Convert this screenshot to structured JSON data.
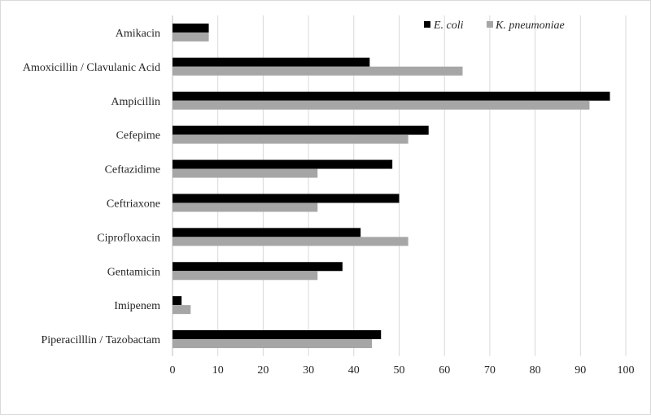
{
  "chart_data": {
    "type": "bar",
    "orientation": "horizontal",
    "categories": [
      "Amikacin",
      "Amoxicillin / Clavulanic Acid",
      "Ampicillin",
      "Cefepime",
      "Ceftazidime",
      "Ceftriaxone",
      "Ciprofloxacin",
      "Gentamicin",
      "Imipenem",
      "Piperacilllin / Tazobactam"
    ],
    "series": [
      {
        "name": "E. coli",
        "color": "#000000",
        "values": [
          8,
          43.5,
          96.5,
          56.5,
          48.5,
          50,
          41.5,
          37.5,
          2,
          46
        ]
      },
      {
        "name": "K. pneumoniae",
        "color": "#a6a6a6",
        "values": [
          8,
          64,
          92,
          52,
          32,
          32,
          52,
          32,
          4,
          44
        ]
      }
    ],
    "xlim": [
      0,
      100
    ],
    "xticks": [
      0,
      10,
      20,
      30,
      40,
      50,
      60,
      70,
      80,
      90,
      100
    ],
    "title": "",
    "xlabel": "",
    "ylabel": "",
    "grid": "vertical",
    "legend_position": "top-right"
  }
}
